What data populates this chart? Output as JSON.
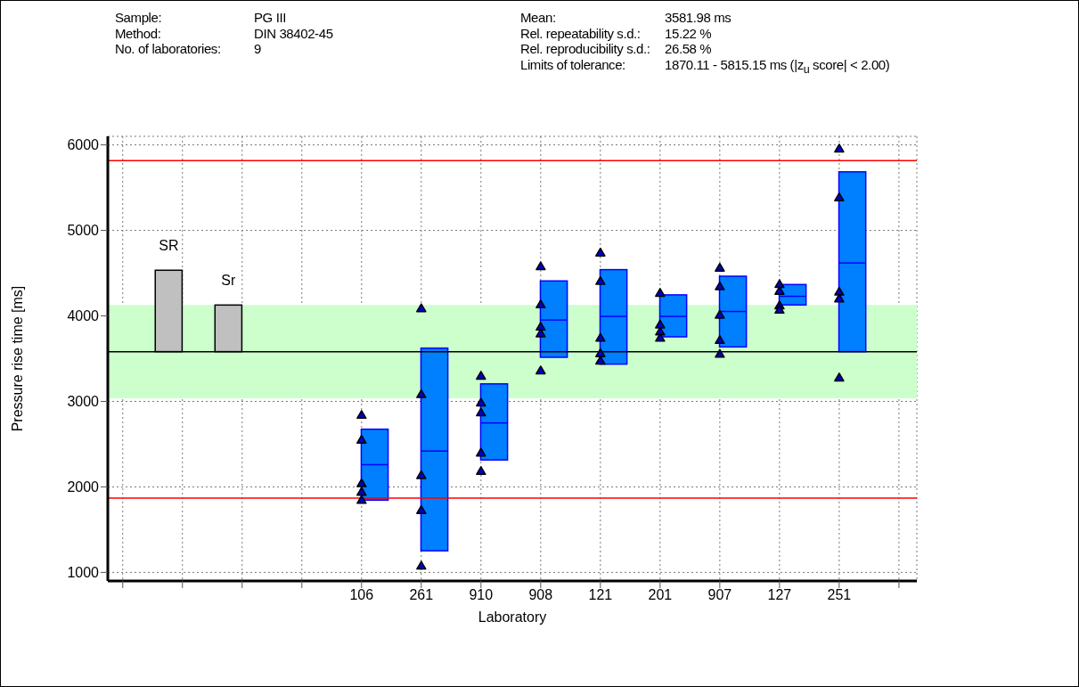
{
  "chart_data": {
    "type": "box",
    "xlabel": "Laboratory",
    "ylabel": "Pressure rise time [ms]",
    "annotations": [
      "Sample:",
      "PG III",
      "Method:",
      "DIN 38402-45",
      "No. of laboratories:",
      "9",
      "Mean:",
      "3581.98 ms",
      "Rel. repeatability s.d.:",
      "15.22 %",
      "Rel. reproducibility s.d.:",
      "26.58 %",
      "Limits of tolerance:",
      "1870.11 - 5815.15 ms  (|z$_{u}$ score| < 2.00)"
    ],
    "categories": [
      null,
      null,
      null,
      null,
      "106",
      "261",
      "910",
      "908",
      "121",
      "201",
      "907",
      "127",
      "251",
      null
    ],
    "series": [
      {
        "type": "bar",
        "color": "#c0c0c0",
        "base": [
          null,
          3581.98,
          3581.98,
          null,
          null,
          null,
          null,
          null,
          null,
          null,
          null,
          null,
          null,
          null
        ],
        "values": [
          null,
          952,
          545,
          null,
          null,
          null,
          null,
          null,
          null,
          null,
          null,
          null,
          null,
          null
        ],
        "value_labels": [
          null,
          "SR",
          "Sr",
          null,
          null,
          null,
          null,
          null,
          null,
          null,
          null,
          null,
          null,
          null
        ]
      },
      {
        "color": "#0080ff",
        "boxes": [
          null,
          null,
          null,
          null,
          {
            "low": 1845,
            "q1": 1845,
            "median": 2260,
            "q3": 2675,
            "high": 2675
          },
          {
            "low": 1253,
            "q1": 1253,
            "median": 2419,
            "q3": 3623,
            "high": 3623
          },
          {
            "low": 2315,
            "q1": 2315,
            "median": 2748,
            "q3": 3205,
            "high": 3205
          },
          {
            "low": 3516,
            "q1": 3516,
            "median": 3952,
            "q3": 4409,
            "high": 4409
          },
          {
            "low": 3436,
            "q1": 3436,
            "median": 3994,
            "q3": 4541,
            "high": 4541
          },
          {
            "low": 3755,
            "q1": 3755,
            "median": 3994,
            "q3": 4246,
            "high": 4246
          },
          {
            "low": 3637,
            "q1": 3637,
            "median": 4052,
            "q3": 4464,
            "high": 4464
          },
          {
            "low": 4128,
            "q1": 4128,
            "median": 4229,
            "q3": 4367,
            "high": 4367
          },
          {
            "low": 3582,
            "q1": 3582,
            "median": 4619,
            "q3": 5685,
            "high": 5685
          },
          null
        ]
      },
      {
        "type": "scatter",
        "color": "#0000cc",
        "marker": "triangle",
        "x": [
          "106",
          "106",
          "106",
          "106",
          "106",
          "261",
          "261",
          "261",
          "261",
          "261",
          "910",
          "910",
          "910",
          "910",
          "910",
          "908",
          "908",
          "908",
          "908",
          "908",
          "121",
          "121",
          "121",
          "121",
          "121",
          "201",
          "201",
          "201",
          "201",
          "907",
          "907",
          "907",
          "907",
          "907",
          "127",
          "127",
          "127",
          "127",
          "127",
          "251",
          "251",
          "251",
          "251",
          "251"
        ],
        "values": [
          2840,
          2550,
          2040,
          1940,
          1845,
          4087,
          3083,
          2135,
          1727,
          1077,
          3298,
          2983,
          2869,
          2398,
          2184,
          4578,
          4132,
          3872,
          3793,
          3360,
          4738,
          4406,
          3741,
          3561,
          3474,
          4267,
          3897,
          3814,
          3741,
          4561,
          4343,
          4011,
          3716,
          3554,
          4370,
          null,
          4290,
          4120,
          4070,
          5955,
          5384,
          4281,
          4201,
          3277
        ]
      }
    ],
    "ylim": [
      900,
      6100
    ],
    "yticks": [
      1000,
      2000,
      3000,
      4000,
      5000,
      6000
    ],
    "grid": true,
    "ref_lines": [
      {
        "axis": "y",
        "value": 5815.15,
        "color": "#ff0000"
      },
      {
        "axis": "y",
        "value": 1870.11,
        "color": "#ff0000"
      },
      {
        "axis": "y",
        "value": 3581.98,
        "color": "#000000"
      }
    ],
    "bands": [
      {
        "axis": "y",
        "from": 3036.8,
        "to": 4127.2,
        "color": "#ccffcc"
      }
    ]
  }
}
